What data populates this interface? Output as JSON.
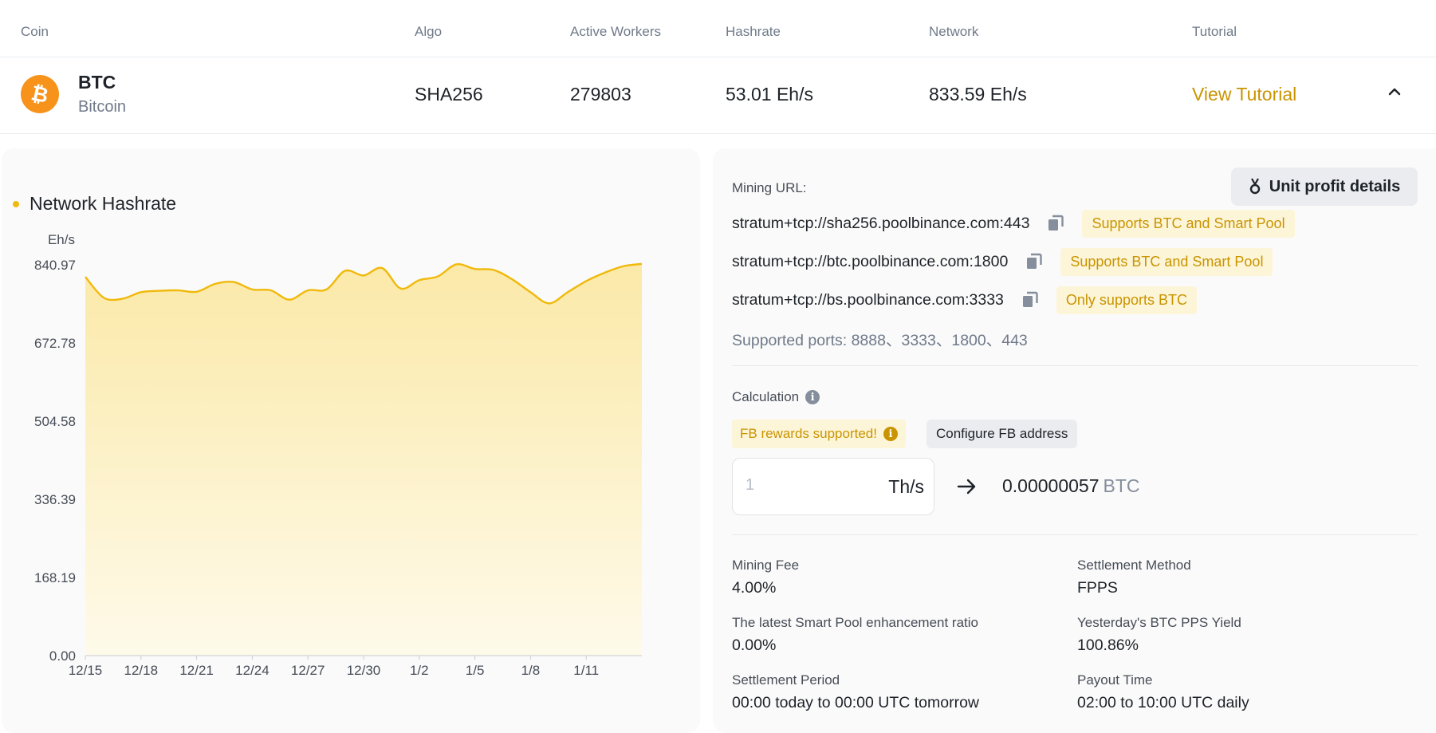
{
  "table": {
    "headers": [
      "Coin",
      "Algo",
      "Active Workers",
      "Hashrate",
      "Network",
      "Tutorial"
    ],
    "row": {
      "symbol": "BTC",
      "name": "Bitcoin",
      "algo": "SHA256",
      "active_workers": "279803",
      "hashrate": "53.01 Eh/s",
      "network": "833.59 Eh/s",
      "tutorial_link": "View Tutorial"
    }
  },
  "chart_data": {
    "type": "area",
    "legend": "Network Hashrate",
    "legend_position": "top-left",
    "ylabel": "Eh/s",
    "ylim": [
      0,
      840.97
    ],
    "yticks": [
      "840.97",
      "672.78",
      "504.58",
      "336.39",
      "168.19",
      "0.00"
    ],
    "ytick_values": [
      840.97,
      672.78,
      504.58,
      336.39,
      168.19,
      0
    ],
    "xticks": [
      "12/15",
      "12/18",
      "12/21",
      "12/24",
      "12/27",
      "12/30",
      "1/2",
      "1/5",
      "1/8",
      "1/11"
    ],
    "x": [
      "12/15",
      "12/16",
      "12/17",
      "12/18",
      "12/19",
      "12/20",
      "12/21",
      "12/22",
      "12/23",
      "12/24",
      "12/25",
      "12/26",
      "12/27",
      "12/28",
      "12/29",
      "12/30",
      "12/31",
      "1/1",
      "1/2",
      "1/3",
      "1/4",
      "1/5",
      "1/6",
      "1/7",
      "1/8",
      "1/9",
      "1/10",
      "1/11",
      "1/12",
      "1/13",
      "1/14"
    ],
    "values": [
      815,
      770,
      768,
      782,
      785,
      786,
      783,
      800,
      804,
      788,
      786,
      766,
      786,
      788,
      828,
      818,
      834,
      790,
      808,
      816,
      842,
      832,
      830,
      810,
      782,
      758,
      782,
      806,
      824,
      838,
      843
    ],
    "grid": false,
    "colors": {
      "line": "#f0b90b",
      "fill_top": "#fbe9a8",
      "fill_bottom": "#fefaea"
    }
  },
  "mining": {
    "unit_profit_label": "Unit profit details",
    "url_label": "Mining URL:",
    "urls": [
      {
        "url": "stratum+tcp://sha256.poolbinance.com:443",
        "tag": "Supports BTC and Smart Pool"
      },
      {
        "url": "stratum+tcp://btc.poolbinance.com:1800",
        "tag": "Supports BTC and Smart Pool"
      },
      {
        "url": "stratum+tcp://bs.poolbinance.com:3333",
        "tag": "Only supports BTC"
      }
    ],
    "ports": "Supported ports: 8888、3333、1800、443"
  },
  "calc": {
    "label": "Calculation",
    "fb_tag": "FB rewards supported!",
    "fb_button": "Configure FB address",
    "input_placeholder": "1",
    "input_unit": "Th/s",
    "result_value": "0.00000057",
    "result_currency": "BTC"
  },
  "details": {
    "mining_fee_label": "Mining Fee",
    "mining_fee": "4.00%",
    "settlement_method_label": "Settlement Method",
    "settlement_method": "FPPS",
    "smart_ratio_label": "The latest Smart Pool enhancement ratio",
    "smart_ratio": "0.00%",
    "pps_yield_label": "Yesterday's BTC PPS Yield",
    "pps_yield": "100.86%",
    "settlement_period_label": "Settlement Period",
    "settlement_period": "00:00 today to 00:00 UTC tomorrow",
    "payout_time_label": "Payout Time",
    "payout_time": "02:00 to 10:00 UTC daily"
  },
  "colors": {
    "accent": "#c99400",
    "brand_yellow": "#f0b90b",
    "btc_orange": "#f7931a"
  },
  "icons": [
    "bitcoin-icon",
    "chevron-up-icon",
    "copy-icon",
    "medal-icon",
    "info-icon",
    "arrow-right-icon"
  ]
}
